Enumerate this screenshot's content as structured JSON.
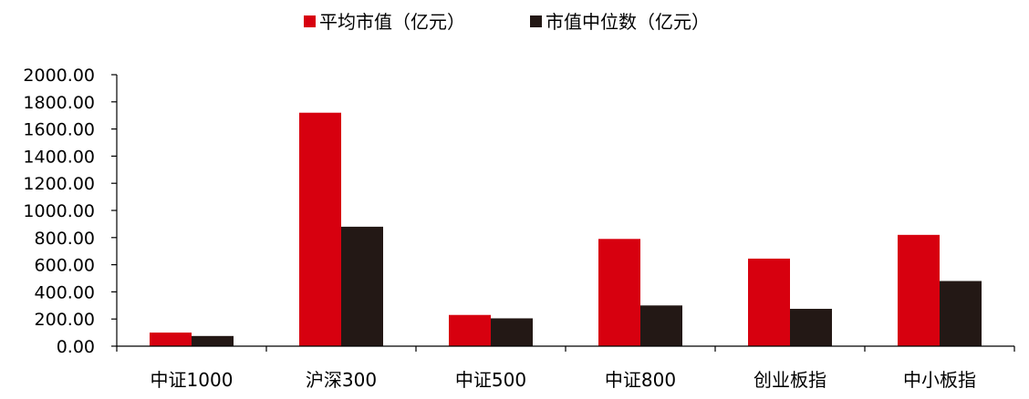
{
  "chart_data": {
    "type": "bar",
    "categories": [
      "中证1000",
      "沪深300",
      "中证500",
      "中证800",
      "创业板指",
      "中小板指"
    ],
    "series": [
      {
        "name": "平均市值（亿元）",
        "color": "#d7000f",
        "values": [
          100,
          1720,
          230,
          790,
          645,
          820
        ]
      },
      {
        "name": "市值中位数（亿元）",
        "color": "#231815",
        "values": [
          75,
          880,
          205,
          300,
          275,
          480
        ]
      }
    ],
    "yticks": [
      "0.00",
      "200.00",
      "400.00",
      "600.00",
      "800.00",
      "1000.00",
      "1200.00",
      "1400.00",
      "1600.00",
      "1800.00",
      "2000.00"
    ],
    "ylim": [
      0,
      2000
    ],
    "title": "",
    "xlabel": "",
    "ylabel": "",
    "grid": false,
    "legend_position": "top-center"
  }
}
